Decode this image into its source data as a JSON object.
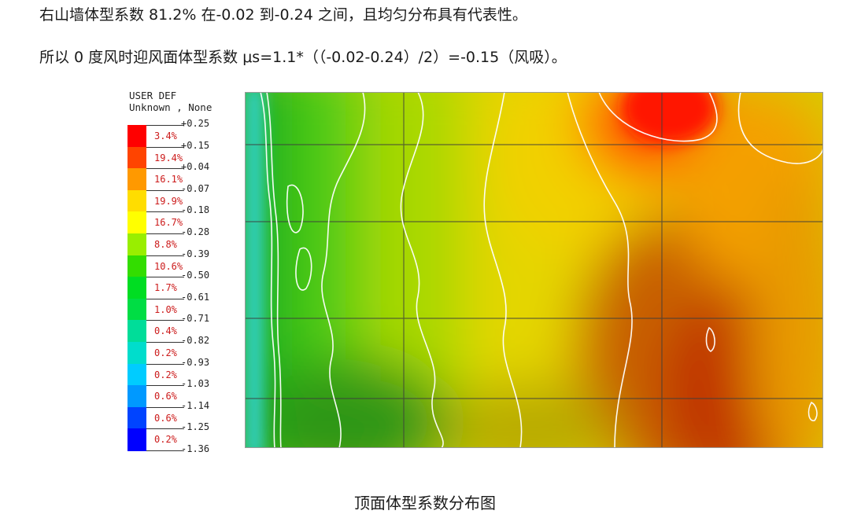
{
  "paragraphs": {
    "p1": "右山墙体型系数 81.2% 在-0.02 到-0.24 之间，且均匀分布具有代表性。",
    "p2": "所以 0 度风时迎风面体型系数 μs=1.1*（（-0.02-0.24）/2）=-0.15（风吸）。"
  },
  "legend": {
    "header_line1": "USER DEF",
    "header_line2": "Unknown , None",
    "ticks": [
      "+0.25",
      "+0.15",
      "+0.04",
      "-0.07",
      "-0.18",
      "-0.28",
      "-0.39",
      "-0.50",
      "-0.61",
      "-0.71",
      "-0.82",
      "-0.93",
      "-1.03",
      "-1.14",
      "-1.25",
      "-1.36"
    ],
    "bands": [
      {
        "pct": "3.4%",
        "color": "#ff0000"
      },
      {
        "pct": "19.4%",
        "color": "#ff4400"
      },
      {
        "pct": "16.1%",
        "color": "#ff9900"
      },
      {
        "pct": "19.9%",
        "color": "#ffdd00"
      },
      {
        "pct": "16.7%",
        "color": "#ffff00"
      },
      {
        "pct": "8.8%",
        "color": "#99ee00"
      },
      {
        "pct": "10.6%",
        "color": "#33dd00"
      },
      {
        "pct": "1.7%",
        "color": "#00dd22"
      },
      {
        "pct": "1.0%",
        "color": "#00dd44"
      },
      {
        "pct": "0.4%",
        "color": "#00dd99"
      },
      {
        "pct": "0.2%",
        "color": "#00ddcc"
      },
      {
        "pct": "0.2%",
        "color": "#00ccff"
      },
      {
        "pct": "0.6%",
        "color": "#0099ff"
      },
      {
        "pct": "0.6%",
        "color": "#0044ff"
      },
      {
        "pct": "0.2%",
        "color": "#0000ff"
      }
    ]
  },
  "caption": "顶面体型系数分布图"
}
